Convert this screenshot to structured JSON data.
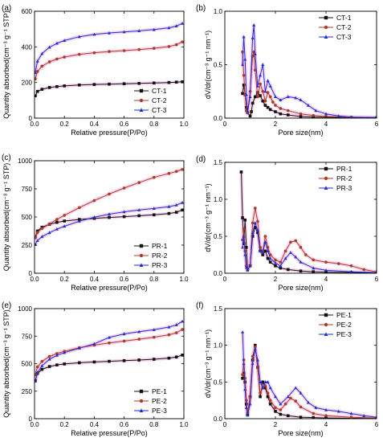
{
  "colors": {
    "black": "#111111",
    "red": "#b03a24",
    "blue": "#1f2fd6",
    "halo": "#f3b7e3"
  },
  "chart_data": [
    {
      "panel": "(a)",
      "type": "line",
      "xlabel": "Relative pressure(P/Po)",
      "ylabel": "Quantity absorbed(cm⁻³ g⁻¹ STP)",
      "xlim": [
        0,
        1.0
      ],
      "ylim": [
        0,
        600
      ],
      "xticks": [
        "0.0",
        "0.2",
        "0.4",
        "0.6",
        "0.8",
        "1.0"
      ],
      "xtick_values": [
        0,
        0.2,
        0.4,
        0.6,
        0.8,
        1.0
      ],
      "yticks": [
        "0",
        "200",
        "400",
        "600"
      ],
      "ytick_values": [
        0,
        200,
        400,
        600
      ],
      "legend": "bottom-right",
      "series": [
        {
          "name": "CT-1",
          "color": "#111111",
          "marker": "square",
          "x": [
            0.005,
            0.02,
            0.05,
            0.1,
            0.15,
            0.2,
            0.3,
            0.4,
            0.5,
            0.6,
            0.7,
            0.8,
            0.9,
            0.95,
            0.99
          ],
          "y": [
            125,
            150,
            162,
            172,
            177,
            181,
            186,
            189,
            191,
            193,
            195,
            197,
            200,
            202,
            204
          ]
        },
        {
          "name": "CT-2",
          "color": "#b03a24",
          "marker": "circle",
          "x": [
            0.005,
            0.02,
            0.05,
            0.1,
            0.15,
            0.2,
            0.3,
            0.4,
            0.5,
            0.6,
            0.7,
            0.8,
            0.9,
            0.95,
            0.99
          ],
          "y": [
            220,
            262,
            292,
            316,
            332,
            343,
            358,
            367,
            374,
            379,
            385,
            392,
            402,
            412,
            428
          ]
        },
        {
          "name": "CT-3",
          "color": "#1f2fd6",
          "marker": "triangle",
          "x": [
            0.005,
            0.02,
            0.05,
            0.1,
            0.15,
            0.2,
            0.3,
            0.4,
            0.5,
            0.6,
            0.7,
            0.8,
            0.9,
            0.95,
            0.99
          ],
          "y": [
            255,
            320,
            362,
            398,
            420,
            436,
            457,
            470,
            478,
            484,
            490,
            497,
            507,
            517,
            532
          ]
        }
      ]
    },
    {
      "panel": "(b)",
      "type": "line",
      "xlabel": "Pore size(nm)",
      "ylabel": "dV/dr(cm⁻³ g⁻¹ nm⁻¹)",
      "xlim": [
        0,
        6
      ],
      "ylim": [
        0,
        1.0
      ],
      "xticks": [
        "0",
        "2",
        "4",
        "6"
      ],
      "xtick_values": [
        0,
        2,
        4,
        6
      ],
      "yticks": [
        "0.0",
        "0.5",
        "1.0"
      ],
      "ytick_values": [
        0,
        0.5,
        1.0
      ],
      "legend": "top-right",
      "series": [
        {
          "name": "CT-1",
          "color": "#111111",
          "marker": "square",
          "x": [
            0.7,
            0.75,
            0.8,
            0.85,
            0.9,
            1.0,
            1.05,
            1.1,
            1.2,
            1.3,
            1.4,
            1.5,
            1.6,
            1.7,
            1.8,
            2.0,
            2.2,
            2.5,
            3.0,
            3.5,
            4.0,
            5.0,
            6.0
          ],
          "y": [
            0.23,
            0.31,
            0.22,
            0.1,
            0.05,
            0.02,
            0.06,
            0.14,
            0.2,
            0.24,
            0.21,
            0.16,
            0.12,
            0.1,
            0.08,
            0.06,
            0.04,
            0.03,
            0.015,
            0.01,
            0.008,
            0.005,
            0.003
          ]
        },
        {
          "name": "CT-2",
          "color": "#b03a24",
          "marker": "circle",
          "x": [
            0.7,
            0.75,
            0.8,
            0.85,
            0.9,
            1.0,
            1.1,
            1.15,
            1.2,
            1.3,
            1.4,
            1.5,
            1.6,
            1.7,
            1.8,
            1.9,
            2.0,
            2.2,
            2.5,
            3.0,
            3.5,
            4.0,
            5.0,
            6.0
          ],
          "y": [
            0.62,
            0.4,
            0.22,
            0.07,
            0.05,
            0.25,
            0.58,
            0.62,
            0.45,
            0.2,
            0.32,
            0.25,
            0.16,
            0.24,
            0.2,
            0.15,
            0.12,
            0.09,
            0.07,
            0.04,
            0.025,
            0.015,
            0.008,
            0.005
          ]
        },
        {
          "name": "CT-3",
          "color": "#1f2fd6",
          "marker": "triangle",
          "x": [
            0.7,
            0.75,
            0.8,
            0.85,
            0.9,
            1.0,
            1.1,
            1.15,
            1.2,
            1.3,
            1.4,
            1.5,
            1.6,
            1.7,
            1.8,
            2.0,
            2.2,
            2.5,
            2.8,
            3.0,
            3.3,
            3.6,
            4.0,
            4.5,
            5.0,
            6.0
          ],
          "y": [
            0.5,
            0.76,
            0.55,
            0.22,
            0.06,
            0.2,
            0.75,
            0.87,
            0.6,
            0.3,
            0.4,
            0.5,
            0.25,
            0.35,
            0.3,
            0.2,
            0.17,
            0.2,
            0.19,
            0.17,
            0.12,
            0.07,
            0.04,
            0.02,
            0.01,
            0.005
          ]
        }
      ]
    },
    {
      "panel": "(c)",
      "type": "line",
      "xlabel": "Relative pressure(P/Po)",
      "ylabel": "Quantity absorbed(cm⁻³ g⁻¹ STP)",
      "xlim": [
        0,
        1.0
      ],
      "ylim": [
        0,
        1000
      ],
      "xticks": [
        "0.0",
        "0.2",
        "0.4",
        "0.6",
        "0.8",
        "1.0"
      ],
      "xtick_values": [
        0,
        0.2,
        0.4,
        0.6,
        0.8,
        1.0
      ],
      "yticks": [
        "0",
        "250",
        "500",
        "750",
        "1000"
      ],
      "ytick_values": [
        0,
        250,
        500,
        750,
        1000
      ],
      "legend": "bottom-right",
      "series": [
        {
          "name": "PR-1",
          "color": "#111111",
          "marker": "square",
          "x": [
            0.005,
            0.02,
            0.05,
            0.1,
            0.15,
            0.2,
            0.3,
            0.4,
            0.5,
            0.6,
            0.7,
            0.8,
            0.9,
            0.95,
            0.99
          ],
          "y": [
            320,
            375,
            408,
            435,
            452,
            464,
            478,
            488,
            496,
            503,
            511,
            519,
            531,
            542,
            562
          ]
        },
        {
          "name": "PR-2",
          "color": "#b03a24",
          "marker": "circle",
          "x": [
            0.005,
            0.02,
            0.05,
            0.1,
            0.15,
            0.2,
            0.3,
            0.4,
            0.5,
            0.6,
            0.7,
            0.8,
            0.9,
            0.95,
            0.99
          ],
          "y": [
            315,
            362,
            398,
            438,
            478,
            515,
            583,
            646,
            704,
            757,
            806,
            852,
            887,
            905,
            922
          ]
        },
        {
          "name": "PR-3",
          "color": "#1f2fd6",
          "marker": "triangle",
          "x": [
            0.005,
            0.02,
            0.05,
            0.1,
            0.15,
            0.2,
            0.3,
            0.4,
            0.5,
            0.6,
            0.7,
            0.8,
            0.9,
            0.95,
            0.99
          ],
          "y": [
            255,
            290,
            325,
            360,
            392,
            418,
            462,
            498,
            525,
            546,
            562,
            576,
            592,
            606,
            628
          ]
        }
      ]
    },
    {
      "panel": "(d)",
      "type": "line",
      "xlabel": "Pore size(nm)",
      "ylabel": "dV/dr(cm⁻³ g⁻¹ nm⁻¹)",
      "xlim": [
        0,
        6
      ],
      "ylim": [
        0,
        1.5
      ],
      "xticks": [
        "0",
        "2",
        "4",
        "6"
      ],
      "xtick_values": [
        0,
        2,
        4,
        6
      ],
      "yticks": [
        "0.0",
        "0.5",
        "1.0",
        "1.5"
      ],
      "ytick_values": [
        0,
        0.5,
        1.0,
        1.5
      ],
      "legend": "top-right",
      "series": [
        {
          "name": "PR-1",
          "color": "#111111",
          "marker": "square",
          "x": [
            0.65,
            0.7,
            0.75,
            0.8,
            0.85,
            0.9,
            1.0,
            1.1,
            1.2,
            1.3,
            1.4,
            1.5,
            1.6,
            1.7,
            1.8,
            2.0,
            2.2,
            2.5,
            3.0,
            3.5,
            4.0,
            5.0,
            6.0
          ],
          "y": [
            1.37,
            0.75,
            0.4,
            0.72,
            0.35,
            0.05,
            0.1,
            0.5,
            0.62,
            0.55,
            0.3,
            0.25,
            0.3,
            0.2,
            0.15,
            0.1,
            0.07,
            0.05,
            0.03,
            0.02,
            0.015,
            0.01,
            0.005
          ]
        },
        {
          "name": "PR-2",
          "color": "#b03a24",
          "marker": "circle",
          "x": [
            0.7,
            0.75,
            0.8,
            0.85,
            0.9,
            1.0,
            1.1,
            1.2,
            1.3,
            1.4,
            1.5,
            1.6,
            1.7,
            1.8,
            2.0,
            2.2,
            2.4,
            2.6,
            2.8,
            3.0,
            3.2,
            3.5,
            4.0,
            4.5,
            5.0,
            5.5,
            6.0
          ],
          "y": [
            0.45,
            0.6,
            0.3,
            0.1,
            0.05,
            0.1,
            0.68,
            0.88,
            0.7,
            0.35,
            0.3,
            0.5,
            0.35,
            0.25,
            0.18,
            0.15,
            0.3,
            0.42,
            0.44,
            0.35,
            0.25,
            0.18,
            0.15,
            0.13,
            0.1,
            0.05,
            0.02
          ]
        },
        {
          "name": "PR-3",
          "color": "#1f2fd6",
          "marker": "triangle",
          "x": [
            0.7,
            0.75,
            0.8,
            0.85,
            0.9,
            1.0,
            1.1,
            1.2,
            1.3,
            1.4,
            1.5,
            1.6,
            1.7,
            1.8,
            2.0,
            2.2,
            2.4,
            2.6,
            2.8,
            3.0,
            3.5,
            4.0,
            5.0,
            6.0
          ],
          "y": [
            0.35,
            0.5,
            0.25,
            0.08,
            0.04,
            0.1,
            0.55,
            0.68,
            0.58,
            0.3,
            0.28,
            0.42,
            0.3,
            0.2,
            0.14,
            0.1,
            0.2,
            0.28,
            0.22,
            0.15,
            0.07,
            0.04,
            0.02,
            0.01
          ]
        }
      ]
    },
    {
      "panel": "(e)",
      "type": "line",
      "xlabel": "Relative pressure(P/Po)",
      "ylabel": "Quantity absorbed(cm⁻³ g⁻¹ STP)",
      "xlim": [
        0,
        1.0
      ],
      "ylim": [
        0,
        1000
      ],
      "xticks": [
        "0.0",
        "0.2",
        "0.4",
        "0.6",
        "0.8",
        "1.0"
      ],
      "xtick_values": [
        0,
        0.2,
        0.4,
        0.6,
        0.8,
        1.0
      ],
      "yticks": [
        "0",
        "250",
        "500",
        "750",
        "1000"
      ],
      "ytick_values": [
        0,
        250,
        500,
        750,
        1000
      ],
      "legend": "bottom-right",
      "series": [
        {
          "name": "PE-1",
          "color": "#111111",
          "marker": "square",
          "x": [
            0.005,
            0.02,
            0.05,
            0.1,
            0.15,
            0.2,
            0.3,
            0.4,
            0.5,
            0.6,
            0.7,
            0.8,
            0.9,
            0.95,
            0.99
          ],
          "y": [
            345,
            412,
            448,
            474,
            488,
            497,
            508,
            515,
            521,
            527,
            533,
            540,
            550,
            560,
            578
          ]
        },
        {
          "name": "PE-2",
          "color": "#b03a24",
          "marker": "circle",
          "x": [
            0.005,
            0.02,
            0.05,
            0.1,
            0.15,
            0.2,
            0.3,
            0.4,
            0.5,
            0.6,
            0.7,
            0.8,
            0.9,
            0.95,
            0.99
          ],
          "y": [
            400,
            470,
            520,
            565,
            592,
            612,
            645,
            668,
            688,
            705,
            722,
            740,
            762,
            780,
            810
          ]
        },
        {
          "name": "PE-3",
          "color": "#1f2fd6",
          "marker": "triangle",
          "x": [
            0.005,
            0.02,
            0.05,
            0.1,
            0.15,
            0.2,
            0.3,
            0.4,
            0.5,
            0.6,
            0.7,
            0.8,
            0.9,
            0.95,
            0.99
          ],
          "y": [
            340,
            420,
            480,
            540,
            575,
            600,
            640,
            680,
            738,
            770,
            790,
            808,
            832,
            852,
            885
          ]
        }
      ]
    },
    {
      "panel": "(f)",
      "type": "line",
      "xlabel": "Pore size(nm)",
      "ylabel": "dV/dr(cm⁻³ g⁻¹ nm⁻¹)",
      "xlim": [
        0,
        6
      ],
      "ylim": [
        0,
        1.5
      ],
      "xticks": [
        "0",
        "2",
        "4",
        "6"
      ],
      "xtick_values": [
        0,
        2,
        4,
        6
      ],
      "yticks": [
        "0.0",
        "0.5",
        "1.0",
        "1.5"
      ],
      "ytick_values": [
        0,
        0.5,
        1.0,
        1.5
      ],
      "legend": "top-right",
      "series": [
        {
          "name": "PE-1",
          "color": "#111111",
          "marker": "square",
          "x": [
            0.7,
            0.75,
            0.8,
            0.85,
            0.9,
            1.0,
            1.1,
            1.2,
            1.3,
            1.4,
            1.5,
            1.6,
            1.7,
            1.8,
            2.0,
            2.2,
            2.5,
            3.0,
            3.5,
            4.0,
            5.0,
            6.0
          ],
          "y": [
            0.55,
            0.62,
            0.5,
            0.2,
            0.05,
            0.3,
            0.8,
            1.0,
            0.7,
            0.3,
            0.5,
            0.42,
            0.3,
            0.2,
            0.1,
            0.06,
            0.04,
            0.02,
            0.015,
            0.01,
            0.005,
            0.003
          ]
        },
        {
          "name": "PE-2",
          "color": "#b03a24",
          "marker": "circle",
          "x": [
            0.7,
            0.75,
            0.8,
            0.85,
            0.9,
            1.0,
            1.1,
            1.2,
            1.3,
            1.4,
            1.5,
            1.6,
            1.7,
            1.8,
            2.0,
            2.2,
            2.4,
            2.6,
            2.8,
            3.0,
            3.5,
            4.0,
            5.0,
            6.0
          ],
          "y": [
            0.6,
            0.8,
            0.55,
            0.25,
            0.08,
            0.3,
            0.85,
            0.98,
            0.7,
            0.35,
            0.42,
            0.45,
            0.35,
            0.25,
            0.15,
            0.12,
            0.2,
            0.28,
            0.24,
            0.16,
            0.07,
            0.04,
            0.02,
            0.01
          ]
        },
        {
          "name": "PE-3",
          "color": "#1f2fd6",
          "marker": "triangle",
          "x": [
            0.7,
            0.75,
            0.8,
            0.85,
            0.9,
            1.0,
            1.1,
            1.2,
            1.3,
            1.4,
            1.5,
            1.6,
            1.7,
            1.8,
            2.0,
            2.2,
            2.5,
            2.8,
            3.0,
            3.3,
            3.6,
            4.0,
            4.5,
            5.0,
            5.5,
            6.0
          ],
          "y": [
            1.18,
            0.75,
            0.4,
            0.15,
            0.05,
            0.2,
            0.75,
            0.95,
            0.8,
            0.5,
            0.42,
            0.5,
            0.5,
            0.42,
            0.3,
            0.2,
            0.3,
            0.42,
            0.35,
            0.22,
            0.15,
            0.12,
            0.1,
            0.07,
            0.04,
            0.02
          ]
        }
      ]
    }
  ]
}
